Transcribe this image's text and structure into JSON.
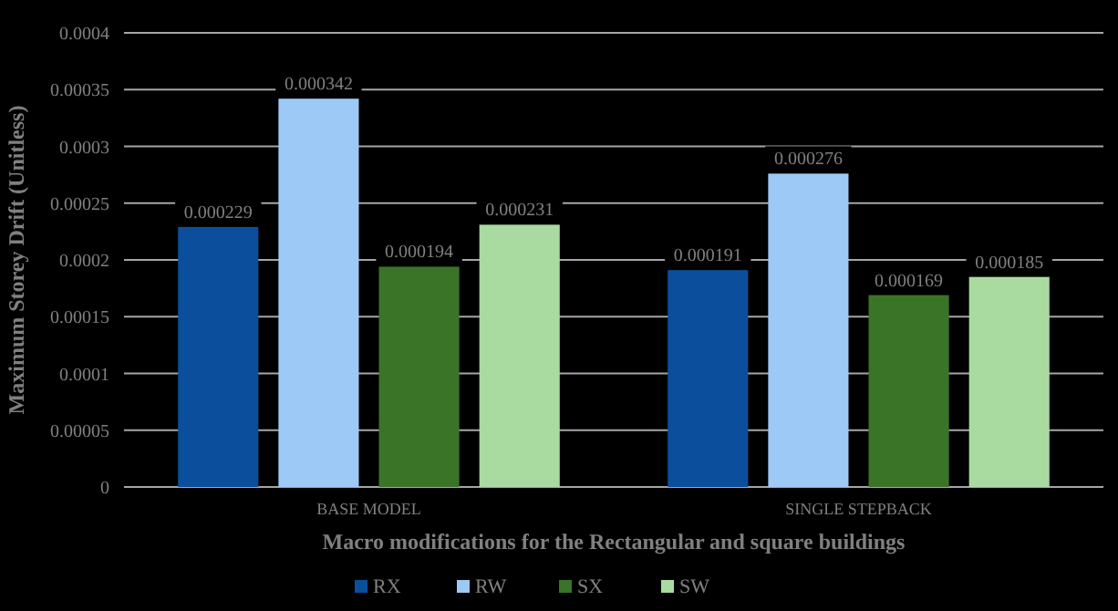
{
  "chart_data": {
    "type": "bar",
    "xlabel": "Macro modifications for the Rectangular and square buildings",
    "ylabel": "Maximum Storey Drift (Unitless)",
    "categories": [
      "BASE MODEL",
      "SINGLE STEPBACK"
    ],
    "series": [
      {
        "name": "RX",
        "color": "#0b4f9c",
        "values": [
          0.000229,
          0.000191
        ]
      },
      {
        "name": "RW",
        "color": "#9dc9f7",
        "values": [
          0.000342,
          0.000276
        ]
      },
      {
        "name": "SX",
        "color": "#3a7427",
        "values": [
          0.000194,
          0.000169
        ]
      },
      {
        "name": "SW",
        "color": "#a9dba0",
        "values": [
          0.000231,
          0.000185
        ]
      }
    ],
    "ylim": [
      0,
      0.0004
    ],
    "yticks": [
      0,
      {
        "value": 5e-05,
        "label": "0.00005"
      },
      0.0001,
      0.00015,
      0.0002,
      0.00025,
      0.0003,
      0.00035,
      0.0004
    ],
    "grid": "y",
    "data_labels": true,
    "legend": "bottom"
  }
}
